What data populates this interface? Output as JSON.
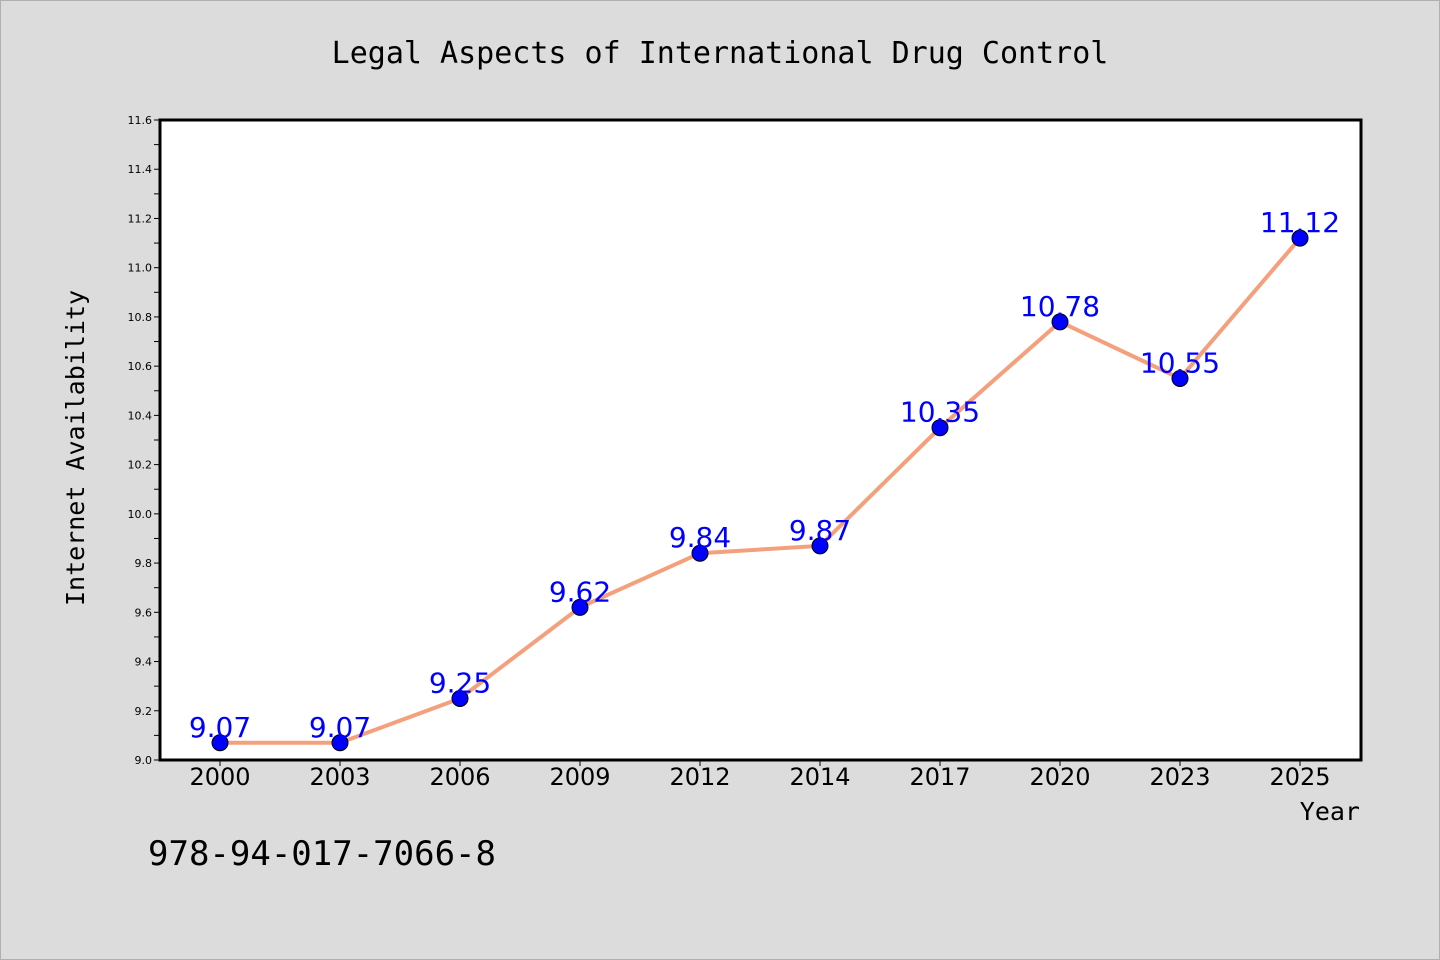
{
  "chart_data": {
    "type": "line",
    "title": "Legal Aspects of International Drug Control",
    "xlabel": "Year",
    "ylabel": "Internet Availability",
    "categories": [
      "2000",
      "2003",
      "2006",
      "2009",
      "2012",
      "2014",
      "2017",
      "2020",
      "2023",
      "2025"
    ],
    "series": [
      {
        "values": [
          9.07,
          9.07,
          9.25,
          9.62,
          9.84,
          9.87,
          10.35,
          10.78,
          10.55,
          11.12
        ],
        "labels": [
          "9.07",
          "9.07",
          "9.25",
          "9.62",
          "9.84",
          "9.87",
          "10.35",
          "10.78",
          "10.55",
          "11.12"
        ],
        "line_color": "#f4a07c",
        "marker_color": "#0000ff"
      }
    ],
    "ylim": [
      9.0,
      11.6
    ],
    "yticks": [
      "9.0",
      "9.2",
      "9.4",
      "9.6",
      "9.8",
      "10.0",
      "10.2",
      "10.4",
      "10.6",
      "10.8",
      "11.0",
      "11.2",
      "11.4",
      "11.6"
    ],
    "grid": false,
    "legend": "none"
  },
  "footer": {
    "isbn": "978-94-017-7066-8"
  }
}
